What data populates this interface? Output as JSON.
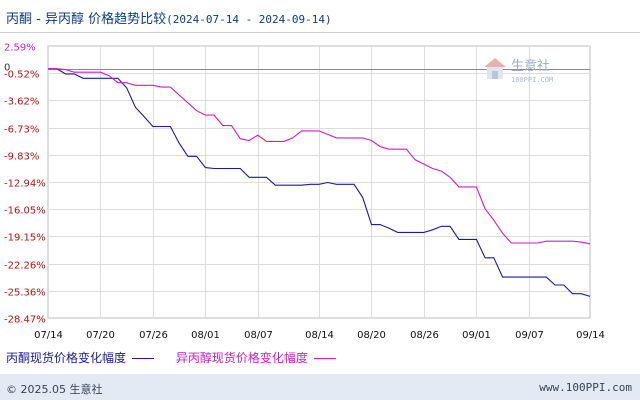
{
  "header": {
    "title": "丙酮 - 异丙醇 价格趋势比较",
    "date_range": "(2024-07-14 - 2024-09-14)"
  },
  "watermark": {
    "brand": "生意社",
    "url": "100PPI.COM"
  },
  "chart_data": {
    "type": "line",
    "title": "丙酮 - 异丙醇 价格趋势比较",
    "xlabel": "",
    "ylabel": "",
    "x_ticks": [
      "07/14",
      "07/20",
      "07/26",
      "08/01",
      "08/07",
      "08/14",
      "08/20",
      "08/26",
      "09/01",
      "09/07",
      "09/14"
    ],
    "y_ticks": [
      "2.59%",
      "-0.52%",
      "-3.62%",
      "-6.73%",
      "-9.83%",
      "-12.94%",
      "-16.05%",
      "-19.15%",
      "-22.26%",
      "-25.36%",
      "-28.47%"
    ],
    "zero_label": "0",
    "ylim": [
      -28.47,
      2.59
    ],
    "grid": true,
    "legend_position": "bottom",
    "colors": {
      "acetone": "#1a1aa6",
      "ipa": "#d21bd2",
      "grid": "#dddddd"
    },
    "series": [
      {
        "name": "丙酮现货价格变化幅度",
        "color": "#1a1aa6",
        "points": [
          [
            "07/14",
            0
          ],
          [
            "07/15",
            0
          ],
          [
            "07/16",
            -0.6
          ],
          [
            "07/17",
            -0.6
          ],
          [
            "07/18",
            -1.1
          ],
          [
            "07/19",
            -1.1
          ],
          [
            "07/20",
            -1.1
          ],
          [
            "07/21",
            -1.1
          ],
          [
            "07/22",
            -1.1
          ],
          [
            "07/23",
            -2.2
          ],
          [
            "07/24",
            -4.4
          ],
          [
            "07/25",
            -5.5
          ],
          [
            "07/26",
            -6.6
          ],
          [
            "07/27",
            -6.6
          ],
          [
            "07/28",
            -6.6
          ],
          [
            "07/29",
            -8.5
          ],
          [
            "07/30",
            -10.0
          ],
          [
            "07/31",
            -10.0
          ],
          [
            "08/01",
            -11.3
          ],
          [
            "08/02",
            -11.4
          ],
          [
            "08/03",
            -11.4
          ],
          [
            "08/04",
            -11.4
          ],
          [
            "08/05",
            -11.4
          ],
          [
            "08/06",
            -12.4
          ],
          [
            "08/07",
            -12.4
          ],
          [
            "08/08",
            -12.4
          ],
          [
            "08/09",
            -13.3
          ],
          [
            "08/10",
            -13.3
          ],
          [
            "08/11",
            -13.3
          ],
          [
            "08/12",
            -13.3
          ],
          [
            "08/13",
            -13.2
          ],
          [
            "08/14",
            -13.2
          ],
          [
            "08/15",
            -13.0
          ],
          [
            "08/16",
            -13.2
          ],
          [
            "08/17",
            -13.2
          ],
          [
            "08/18",
            -13.2
          ],
          [
            "08/19",
            -14.7
          ],
          [
            "08/20",
            -17.8
          ],
          [
            "08/21",
            -17.8
          ],
          [
            "08/22",
            -18.2
          ],
          [
            "08/23",
            -18.7
          ],
          [
            "08/24",
            -18.7
          ],
          [
            "08/25",
            -18.7
          ],
          [
            "08/26",
            -18.7
          ],
          [
            "08/27",
            -18.4
          ],
          [
            "08/28",
            -18.0
          ],
          [
            "08/29",
            -18.0
          ],
          [
            "08/30",
            -19.5
          ],
          [
            "08/31",
            -19.5
          ],
          [
            "09/01",
            -19.5
          ],
          [
            "09/02",
            -21.6
          ],
          [
            "09/03",
            -21.6
          ],
          [
            "09/04",
            -23.8
          ],
          [
            "09/05",
            -23.8
          ],
          [
            "09/06",
            -23.8
          ],
          [
            "09/07",
            -23.8
          ],
          [
            "09/08",
            -23.8
          ],
          [
            "09/09",
            -23.8
          ],
          [
            "09/10",
            -24.7
          ],
          [
            "09/11",
            -24.7
          ],
          [
            "09/12",
            -25.7
          ],
          [
            "09/13",
            -25.7
          ],
          [
            "09/14",
            -26.0
          ]
        ]
      },
      {
        "name": "异丙醇现货价格变化幅度",
        "color": "#d21bd2",
        "points": [
          [
            "07/14",
            0
          ],
          [
            "07/15",
            0
          ],
          [
            "07/16",
            -0.1
          ],
          [
            "07/17",
            -0.4
          ],
          [
            "07/18",
            -0.4
          ],
          [
            "07/19",
            -0.4
          ],
          [
            "07/20",
            -0.4
          ],
          [
            "07/21",
            -0.8
          ],
          [
            "07/22",
            -1.6
          ],
          [
            "07/23",
            -1.6
          ],
          [
            "07/24",
            -1.9
          ],
          [
            "07/25",
            -1.9
          ],
          [
            "07/26",
            -1.9
          ],
          [
            "07/27",
            -2.1
          ],
          [
            "07/28",
            -2.1
          ],
          [
            "07/29",
            -3.0
          ],
          [
            "07/30",
            -3.9
          ],
          [
            "07/31",
            -4.8
          ],
          [
            "08/01",
            -5.3
          ],
          [
            "08/02",
            -5.3
          ],
          [
            "08/03",
            -6.5
          ],
          [
            "08/04",
            -6.5
          ],
          [
            "08/05",
            -8.0
          ],
          [
            "08/06",
            -8.2
          ],
          [
            "08/07",
            -7.6
          ],
          [
            "08/08",
            -8.3
          ],
          [
            "08/09",
            -8.3
          ],
          [
            "08/10",
            -8.3
          ],
          [
            "08/11",
            -7.9
          ],
          [
            "08/12",
            -7.1
          ],
          [
            "08/13",
            -7.1
          ],
          [
            "08/14",
            -7.1
          ],
          [
            "08/15",
            -7.5
          ],
          [
            "08/16",
            -7.9
          ],
          [
            "08/17",
            -7.9
          ],
          [
            "08/18",
            -7.9
          ],
          [
            "08/19",
            -7.9
          ],
          [
            "08/20",
            -8.2
          ],
          [
            "08/21",
            -8.9
          ],
          [
            "08/22",
            -9.2
          ],
          [
            "08/23",
            -9.2
          ],
          [
            "08/24",
            -9.2
          ],
          [
            "08/25",
            -10.4
          ],
          [
            "08/26",
            -10.9
          ],
          [
            "08/27",
            -11.4
          ],
          [
            "08/28",
            -11.7
          ],
          [
            "08/29",
            -12.4
          ],
          [
            "08/30",
            -13.5
          ],
          [
            "08/31",
            -13.5
          ],
          [
            "09/01",
            -13.5
          ],
          [
            "09/02",
            -16.0
          ],
          [
            "09/03",
            -17.3
          ],
          [
            "09/04",
            -18.8
          ],
          [
            "09/05",
            -19.9
          ],
          [
            "09/06",
            -19.9
          ],
          [
            "09/07",
            -19.9
          ],
          [
            "09/08",
            -19.9
          ],
          [
            "09/09",
            -19.7
          ],
          [
            "09/10",
            -19.7
          ],
          [
            "09/11",
            -19.7
          ],
          [
            "09/12",
            -19.7
          ],
          [
            "09/13",
            -19.8
          ],
          [
            "09/14",
            -20.0
          ]
        ]
      }
    ]
  },
  "footer": {
    "copyright": "© 2025.05 生意社",
    "site": "www.100PPI.com"
  }
}
